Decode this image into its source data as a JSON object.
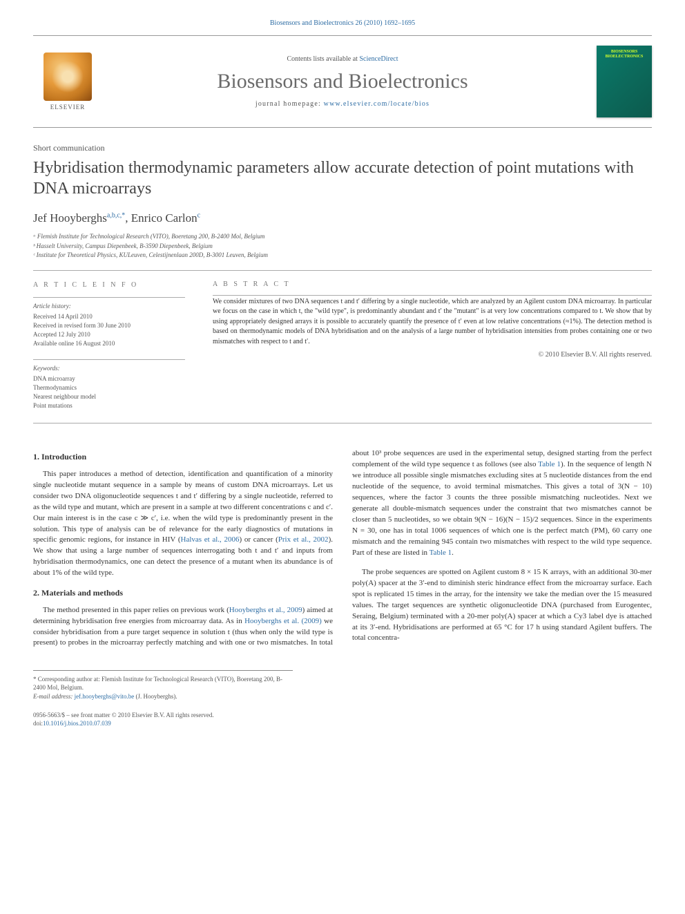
{
  "header": {
    "citation": "Biosensors and Bioelectronics 26 (2010) 1692–1695",
    "contents_prefix": "Contents lists available at ",
    "contents_link": "ScienceDirect",
    "journal": "Biosensors and Bioelectronics",
    "homepage_prefix": "journal homepage: ",
    "homepage_url": "www.elsevier.com/locate/bios",
    "publisher": "ELSEVIER",
    "cover_text": "BIOSENSORS BIOELECTRONICS"
  },
  "article": {
    "type": "Short communication",
    "title": "Hybridisation thermodynamic parameters allow accurate detection of point mutations with DNA microarrays",
    "authors_html": "Jef Hooyberghs<sup>a,b,c,*</sup>, Enrico Carlon<sup>c</sup>",
    "affiliations": [
      "ᵃ Flemish Institute for Technological Research (VITO), Boeretang 200, B-2400 Mol, Belgium",
      "ᵇ Hasselt University, Campus Diepenbeek, B-3590 Diepenbeek, Belgium",
      "ᶜ Institute for Theoretical Physics, KULeuven, Celestijnenlaan 200D, B-3001 Leuven, Belgium"
    ]
  },
  "info": {
    "heading": "A R T I C L E   I N F O",
    "history_label": "Article history:",
    "history": [
      "Received 14 April 2010",
      "Received in revised form 30 June 2010",
      "Accepted 12 July 2010",
      "Available online 16 August 2010"
    ],
    "keywords_label": "Keywords:",
    "keywords": [
      "DNA microarray",
      "Thermodynamics",
      "Nearest neighbour model",
      "Point mutations"
    ]
  },
  "abstract": {
    "heading": "A B S T R A C T",
    "text": "We consider mixtures of two DNA sequences t and t′ differing by a single nucleotide, which are analyzed by an Agilent custom DNA microarray. In particular we focus on the case in which t, the \"wild type\", is predominantly abundant and t′ the \"mutant\" is at very low concentrations compared to t. We show that by using appropriately designed arrays it is possible to accurately quantify the presence of t′ even at low relative concentrations (≈1%). The detection method is based on thermodynamic models of DNA hybridisation and on the analysis of a large number of hybridisation intensities from probes containing one or two mismatches with respect to t and t′.",
    "copyright": "© 2010 Elsevier B.V. All rights reserved."
  },
  "sections": {
    "s1": {
      "heading": "1.  Introduction",
      "p1_a": "This paper introduces a method of detection, identification and quantification of a minority single nucleotide mutant sequence in a sample by means of custom DNA microarrays. Let us consider two DNA oligonucleotide sequences t and t′ differing by a single nucleotide, referred to as the wild type and mutant, which are present in a sample at two different concentrations c and c′. Our main interest is in the case c ≫ c′, i.e. when the wild type is predominantly present in the solution. This type of analysis can be of relevance for the early diagnostics of mutations in specific genomic regions, for instance in HIV (",
      "link1": "Halvas et al., 2006",
      "p1_b": ") or cancer (",
      "link2": "Prix et al., 2002",
      "p1_c": "). We show that using a large number of sequences interrogating both t and t′ and inputs from hybridisation thermodynamics, one can detect the presence of a mutant when its abundance is of about 1% of the wild type."
    },
    "s2": {
      "heading": "2.  Materials and methods",
      "p1_a": "The method presented in this paper relies on previous work (",
      "link1": "Hooyberghs et al., 2009",
      "p1_b": ") aimed at determining hybridisation free energies from microarray data. As in ",
      "link2": "Hooyberghs et al. (2009)",
      "p1_c": " we consider hybridisation from a pure target sequence in solution t (thus when only the wild type is present) to probes in the microarray perfectly matching and with one or two mismatches. In total about 10³ probe sequences are used in the experimental setup, designed starting from the perfect complement of the wild type sequence t as follows (see also ",
      "link3": "Table 1",
      "p1_d": "). In the sequence of length N we introduce all possible single mismatches excluding sites at 5 nucleotide distances from the end nucleotide of the sequence, to avoid terminal mismatches. This gives a total of 3(N − 10) sequences, where the factor 3 counts the three possible mismatching nucleotides. Next we generate all double-mismatch sequences under the constraint that two mismatches cannot be closer than 5 nucleotides, so we obtain 9(N − 16)(N − 15)/2 sequences. Since in the experiments N = 30, one has in total 1006 sequences of which one is the perfect match (PM), 60 carry one mismatch and the remaining 945 contain two mismatches with respect to the wild type sequence. Part of these are listed in ",
      "link4": "Table 1",
      "p1_e": ".",
      "p2": "The probe sequences are spotted on Agilent custom 8 × 15 K arrays, with an additional 30-mer poly(A) spacer at the 3′-end to diminish steric hindrance effect from the microarray surface. Each spot is replicated 15 times in the array, for the intensity we take the median over the 15 measured values. The target sequences are synthetic oligonucleotide DNA (purchased from Eurogentec, Seraing, Belgium) terminated with a 20-mer poly(A) spacer at which a Cy3 label dye is attached at its 3′-end. Hybridisations are performed at 65 °C for 17 h using standard Agilent buffers. The total concentra-"
    }
  },
  "footnotes": {
    "corr": "* Corresponding author at: Flemish Institute for Technological Research (VITO), Boeretang 200, B-2400 Mol, Belgium.",
    "email_label": "E-mail address: ",
    "email": "jef.hooyberghs@vito.be",
    "email_suffix": " (J. Hooyberghs)."
  },
  "footer": {
    "issn": "0956-5663/$ – see front matter © 2010 Elsevier B.V. All rights reserved.",
    "doi_label": "doi:",
    "doi": "10.1016/j.bios.2010.07.039"
  },
  "colors": {
    "link": "#2e6da4",
    "muted": "#555555",
    "text": "#333333",
    "cover_bg": "#0a7a6a",
    "cover_accent": "#d4ff2a",
    "elsevier_a": "#e69a3a",
    "elsevier_b": "#8a4a10"
  }
}
